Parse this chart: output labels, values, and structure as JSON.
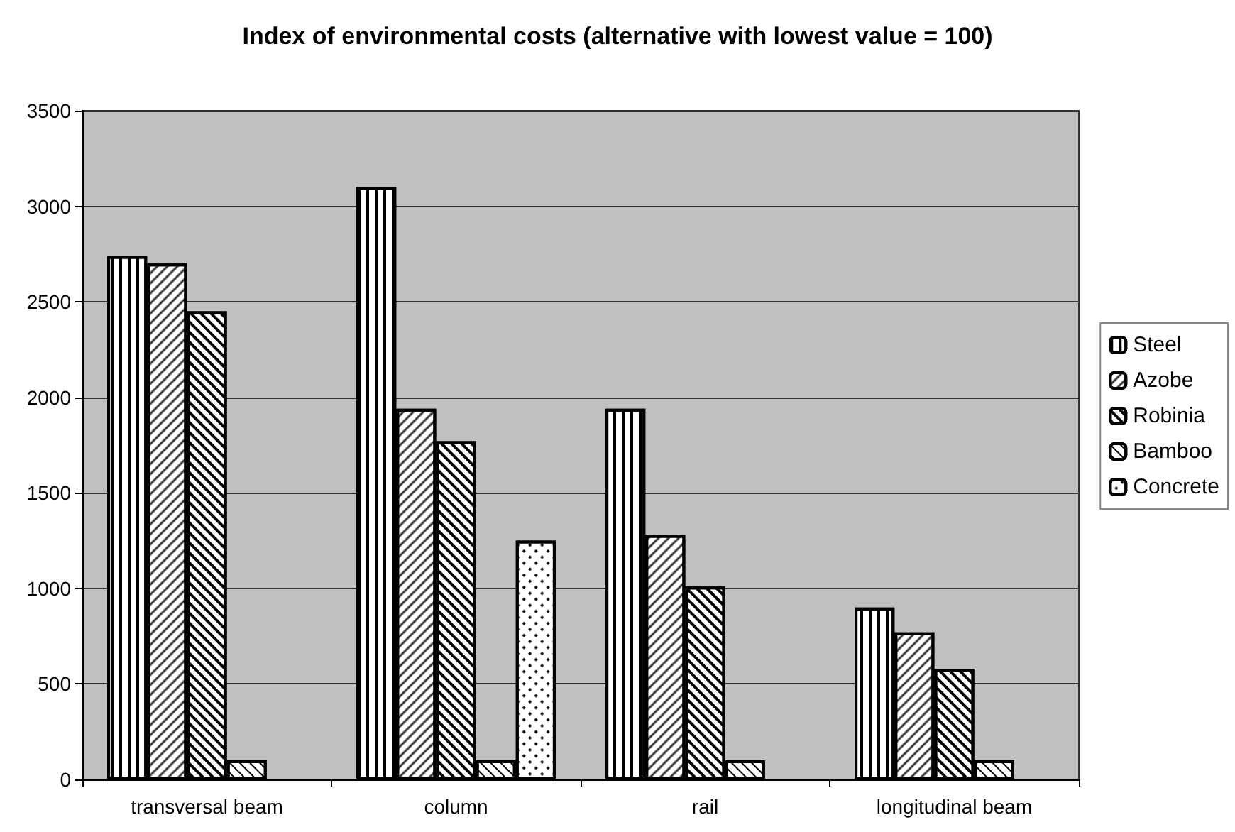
{
  "chart_data": {
    "type": "bar",
    "title": "Index of environmental costs (alternative with lowest value = 100)",
    "categories": [
      "transversal beam",
      "column",
      "rail",
      "longitudinal beam"
    ],
    "series": [
      {
        "name": "Steel",
        "color": "#ffffff",
        "values": [
          2740,
          3100,
          1940,
          900
        ]
      },
      {
        "name": "Azobe",
        "color": "#ffffff",
        "values": [
          2700,
          1940,
          1280,
          770
        ]
      },
      {
        "name": "Robinia",
        "color": "#ffffff",
        "values": [
          2450,
          1770,
          1010,
          580
        ]
      },
      {
        "name": "Bamboo",
        "color": "#ffffff",
        "values": [
          100,
          100,
          100,
          100
        ]
      },
      {
        "name": "Concrete",
        "color": "#ffffff",
        "values": [
          null,
          1250,
          null,
          null
        ]
      }
    ],
    "ylim": [
      0,
      3500
    ],
    "yticks": [
      0,
      500,
      1000,
      1500,
      2000,
      2500,
      3000,
      3500
    ],
    "grid": "y",
    "legend": "right"
  }
}
